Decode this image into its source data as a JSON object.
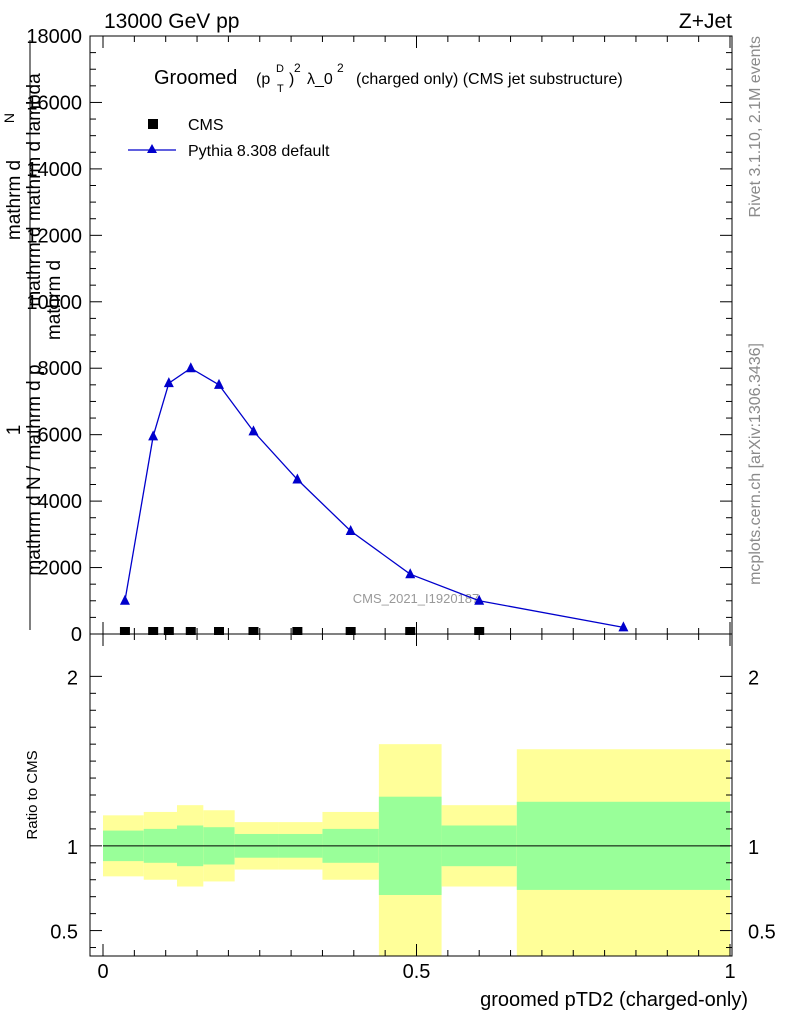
{
  "header": {
    "energy_label": "13000 GeV pp",
    "process_label": "Z+Jet"
  },
  "side_labels": {
    "rivet": "Rivet 3.1.10,  2.1M events",
    "mcplots": "mcplots.cern.ch [arXiv:1306.3436]"
  },
  "chart_data": [
    {
      "type": "scatter",
      "title_prefix": "Groomed",
      "title_formula": "(p",
      "title_sup_D": "D",
      "title_sub_T": "T",
      "title_pow": "2",
      "title_lambda": "λ_0",
      "title_suffix": "(charged only) (CMS jet substructure)",
      "ylabel_numerator": "mathrm d",
      "ylabel_numerator_N": "N",
      "ylabel_denominator": "mathrm d mathrm d lambda",
      "ylabel_one": "1",
      "ylabel_fraction_bottom": "mathrm d N / mathrm d p",
      "ylabel_fraction_extra": "mathrm d",
      "ylim": [
        0,
        18000
      ],
      "yticks": [
        0,
        2000,
        4000,
        6000,
        8000,
        10000,
        12000,
        14000,
        16000,
        18000
      ],
      "ytick_labels": [
        "0",
        "2000",
        "4000",
        "6000",
        "8000",
        "10000",
        "12000",
        "14000",
        "16000",
        "18000"
      ],
      "xlim": [
        0,
        1
      ],
      "watermark": "CMS_2021_I1920187",
      "legend_position": "top-left",
      "series": [
        {
          "name": "CMS",
          "color": "#000000",
          "marker": "square",
          "x": [
            0.035,
            0.08,
            0.105,
            0.14,
            0.185,
            0.24,
            0.31,
            0.395,
            0.49,
            0.6
          ],
          "y": [
            0,
            0,
            0,
            0,
            0,
            0,
            0,
            0,
            0,
            0
          ]
        },
        {
          "name": "Pythia 8.308 default",
          "color": "#0000cc",
          "marker": "triangle",
          "x": [
            0.035,
            0.08,
            0.105,
            0.14,
            0.185,
            0.24,
            0.31,
            0.395,
            0.49,
            0.6,
            0.83
          ],
          "y": [
            1000,
            5950,
            7550,
            8000,
            7500,
            6100,
            4650,
            3100,
            1800,
            1000,
            200
          ]
        }
      ]
    },
    {
      "type": "area",
      "ylabel": "Ratio to CMS",
      "xlabel": "groomed pTD2 (charged-only)",
      "xlim": [
        0,
        1
      ],
      "ylim": [
        0.35,
        2.25
      ],
      "xticks": [
        0,
        0.5,
        1
      ],
      "xtick_labels": [
        "0",
        "0.5",
        "1"
      ],
      "yticks": [
        0.5,
        1,
        2
      ],
      "ytick_labels": [
        "0.5",
        "1",
        "2"
      ],
      "reference_line": 1,
      "bins": [
        {
          "x0": 0.0,
          "x1": 0.065,
          "green_lo": 0.91,
          "green_hi": 1.09,
          "yellow_lo": 0.82,
          "yellow_hi": 1.18
        },
        {
          "x0": 0.065,
          "x1": 0.118,
          "green_lo": 0.9,
          "green_hi": 1.1,
          "yellow_lo": 0.8,
          "yellow_hi": 1.2
        },
        {
          "x0": 0.118,
          "x1": 0.16,
          "green_lo": 0.88,
          "green_hi": 1.12,
          "yellow_lo": 0.76,
          "yellow_hi": 1.24
        },
        {
          "x0": 0.16,
          "x1": 0.21,
          "green_lo": 0.89,
          "green_hi": 1.11,
          "yellow_lo": 0.79,
          "yellow_hi": 1.21
        },
        {
          "x0": 0.21,
          "x1": 0.28,
          "green_lo": 0.93,
          "green_hi": 1.07,
          "yellow_lo": 0.86,
          "yellow_hi": 1.14
        },
        {
          "x0": 0.28,
          "x1": 0.35,
          "green_lo": 0.93,
          "green_hi": 1.07,
          "yellow_lo": 0.86,
          "yellow_hi": 1.14
        },
        {
          "x0": 0.35,
          "x1": 0.44,
          "green_lo": 0.9,
          "green_hi": 1.1,
          "yellow_lo": 0.8,
          "yellow_hi": 1.2
        },
        {
          "x0": 0.44,
          "x1": 0.54,
          "green_lo": 0.71,
          "green_hi": 1.29,
          "yellow_lo": 0.35,
          "yellow_hi": 1.6
        },
        {
          "x0": 0.54,
          "x1": 0.66,
          "green_lo": 0.88,
          "green_hi": 1.12,
          "yellow_lo": 0.76,
          "yellow_hi": 1.24
        },
        {
          "x0": 0.66,
          "x1": 1.0,
          "green_lo": 0.74,
          "green_hi": 1.26,
          "yellow_lo": 0.35,
          "yellow_hi": 1.57
        }
      ],
      "colors": {
        "green": "#99ff99",
        "yellow": "#ffff99"
      }
    }
  ]
}
